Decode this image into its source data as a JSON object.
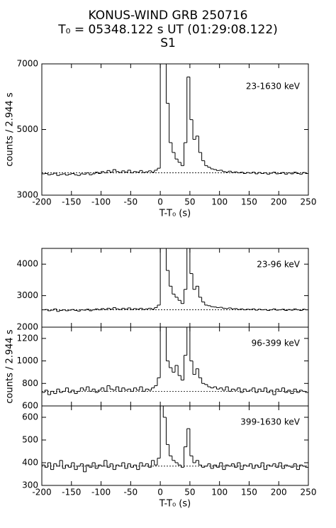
{
  "title": [
    "KONUS-WIND GRB 250716",
    "T₀ = 05348.122 s UT (01:29:08.122)",
    "S1"
  ],
  "chart_data": [
    {
      "type": "histogram",
      "label": "23-1630 keV",
      "ylabel": "counts / 2.944 s",
      "xlabel": "T-T₀ (s)",
      "xlim": [
        -200,
        250
      ],
      "xticks": [
        -200,
        -150,
        -100,
        -50,
        0,
        50,
        100,
        150,
        200,
        250
      ],
      "ylim": [
        3000,
        7000
      ],
      "yticks": [
        3000,
        5000,
        7000
      ],
      "background": 3680,
      "color": "#000000",
      "bins": [
        -200,
        -195,
        -190,
        -185,
        -180,
        -175,
        -170,
        -165,
        -160,
        -155,
        -150,
        -145,
        -140,
        -135,
        -130,
        -125,
        -120,
        -115,
        -110,
        -105,
        -100,
        -95,
        -90,
        -85,
        -80,
        -75,
        -70,
        -65,
        -60,
        -55,
        -50,
        -45,
        -40,
        -35,
        -30,
        -25,
        -20,
        -15,
        -10,
        -5,
        0,
        5,
        10,
        15,
        20,
        25,
        30,
        35,
        40,
        45,
        50,
        55,
        60,
        65,
        70,
        75,
        80,
        85,
        90,
        95,
        100,
        105,
        110,
        115,
        120,
        125,
        130,
        135,
        140,
        145,
        150,
        155,
        160,
        165,
        170,
        175,
        180,
        185,
        190,
        195,
        200,
        205,
        210,
        215,
        220,
        225,
        230,
        235,
        240,
        245,
        250
      ],
      "values": [
        3650,
        3660,
        3620,
        3640,
        3670,
        3600,
        3630,
        3650,
        3610,
        3640,
        3660,
        3620,
        3600,
        3650,
        3640,
        3680,
        3620,
        3650,
        3700,
        3660,
        3720,
        3680,
        3750,
        3700,
        3780,
        3720,
        3690,
        3740,
        3700,
        3760,
        3680,
        3720,
        3700,
        3750,
        3690,
        3710,
        3740,
        3700,
        3760,
        3820,
        7000,
        7000,
        5800,
        4600,
        4300,
        4100,
        4000,
        3900,
        4600,
        6600,
        5300,
        4700,
        4800,
        4300,
        4050,
        3900,
        3850,
        3800,
        3780,
        3750,
        3760,
        3720,
        3700,
        3730,
        3690,
        3710,
        3680,
        3700,
        3660,
        3690,
        3670,
        3700,
        3650,
        3690,
        3660,
        3680,
        3640,
        3670,
        3700,
        3650,
        3660,
        3690,
        3640,
        3680,
        3650,
        3700,
        3660,
        3640,
        3690,
        3660
      ]
    },
    {
      "type": "histogram",
      "label": "23-96 keV",
      "xlim": [
        -200,
        250
      ],
      "xticks": [
        -200,
        -150,
        -100,
        -50,
        0,
        50,
        100,
        150,
        200,
        250
      ],
      "ylim": [
        2000,
        4500
      ],
      "yticks": [
        2000,
        3000,
        4000
      ],
      "background": 2550,
      "color": "#000000",
      "bins": [
        -200,
        -195,
        -190,
        -185,
        -180,
        -175,
        -170,
        -165,
        -160,
        -155,
        -150,
        -145,
        -140,
        -135,
        -130,
        -125,
        -120,
        -115,
        -110,
        -105,
        -100,
        -95,
        -90,
        -85,
        -80,
        -75,
        -70,
        -65,
        -60,
        -55,
        -50,
        -45,
        -40,
        -35,
        -30,
        -25,
        -20,
        -15,
        -10,
        -5,
        0,
        5,
        10,
        15,
        20,
        25,
        30,
        35,
        40,
        45,
        50,
        55,
        60,
        65,
        70,
        75,
        80,
        85,
        90,
        95,
        100,
        105,
        110,
        115,
        120,
        125,
        130,
        135,
        140,
        145,
        150,
        155,
        160,
        165,
        170,
        175,
        180,
        185,
        190,
        195,
        200,
        205,
        210,
        215,
        220,
        225,
        230,
        235,
        240,
        245,
        250
      ],
      "values": [
        2550,
        2560,
        2520,
        2540,
        2580,
        2500,
        2530,
        2550,
        2520,
        2540,
        2560,
        2530,
        2510,
        2550,
        2540,
        2570,
        2520,
        2550,
        2580,
        2550,
        2590,
        2560,
        2600,
        2570,
        2620,
        2580,
        2560,
        2600,
        2570,
        2610,
        2560,
        2590,
        2570,
        2600,
        2560,
        2580,
        2600,
        2570,
        2620,
        2700,
        4500,
        4500,
        3800,
        3300,
        3050,
        2950,
        2850,
        2750,
        3200,
        4500,
        3700,
        3200,
        3300,
        2950,
        2800,
        2700,
        2680,
        2650,
        2640,
        2620,
        2630,
        2600,
        2590,
        2610,
        2580,
        2590,
        2560,
        2580,
        2550,
        2570,
        2560,
        2580,
        2540,
        2570,
        2550,
        2560,
        2530,
        2550,
        2580,
        2540,
        2550,
        2570,
        2530,
        2560,
        2540,
        2580,
        2550,
        2530,
        2570,
        2550
      ]
    },
    {
      "type": "histogram",
      "label": "96-399 keV",
      "ylabel": "counts / 2.944 s",
      "xlim": [
        -200,
        250
      ],
      "xticks": [
        -200,
        -150,
        -100,
        -50,
        0,
        50,
        100,
        150,
        200,
        250
      ],
      "ylim": [
        600,
        1300
      ],
      "yticks": [
        600,
        800,
        1000,
        1200
      ],
      "background": 730,
      "color": "#000000",
      "bins": [
        -200,
        -195,
        -190,
        -185,
        -180,
        -175,
        -170,
        -165,
        -160,
        -155,
        -150,
        -145,
        -140,
        -135,
        -130,
        -125,
        -120,
        -115,
        -110,
        -105,
        -100,
        -95,
        -90,
        -85,
        -80,
        -75,
        -70,
        -65,
        -60,
        -55,
        -50,
        -45,
        -40,
        -35,
        -30,
        -25,
        -20,
        -15,
        -10,
        -5,
        0,
        5,
        10,
        15,
        20,
        25,
        30,
        35,
        40,
        45,
        50,
        55,
        60,
        65,
        70,
        75,
        80,
        85,
        90,
        95,
        100,
        105,
        110,
        115,
        120,
        125,
        130,
        135,
        140,
        145,
        150,
        155,
        160,
        165,
        170,
        175,
        180,
        185,
        190,
        195,
        200,
        205,
        210,
        215,
        220,
        225,
        230,
        235,
        240,
        245,
        250
      ],
      "values": [
        720,
        740,
        700,
        730,
        710,
        750,
        720,
        730,
        760,
        720,
        740,
        710,
        730,
        760,
        740,
        770,
        730,
        750,
        720,
        740,
        760,
        730,
        780,
        750,
        740,
        770,
        730,
        760,
        740,
        750,
        730,
        760,
        740,
        770,
        730,
        750,
        740,
        760,
        780,
        850,
        1300,
        1300,
        1000,
        940,
        900,
        960,
        870,
        830,
        1050,
        1300,
        1000,
        880,
        930,
        850,
        800,
        790,
        770,
        760,
        770,
        750,
        760,
        740,
        770,
        730,
        750,
        740,
        760,
        720,
        750,
        730,
        740,
        760,
        720,
        750,
        730,
        760,
        720,
        740,
        700,
        750,
        730,
        760,
        720,
        740,
        710,
        750,
        720,
        740,
        730,
        720
      ]
    },
    {
      "type": "histogram",
      "label": "399-1630 keV",
      "xlabel": "T-T₀ (s)",
      "xlim": [
        -200,
        250
      ],
      "xticks": [
        -200,
        -150,
        -100,
        -50,
        0,
        50,
        100,
        150,
        200,
        250
      ],
      "ylim": [
        300,
        650
      ],
      "yticks": [
        300,
        400,
        500,
        600
      ],
      "background": 385,
      "color": "#000000",
      "bins": [
        -200,
        -195,
        -190,
        -185,
        -180,
        -175,
        -170,
        -165,
        -160,
        -155,
        -150,
        -145,
        -140,
        -135,
        -130,
        -125,
        -120,
        -115,
        -110,
        -105,
        -100,
        -95,
        -90,
        -85,
        -80,
        -75,
        -70,
        -65,
        -60,
        -55,
        -50,
        -45,
        -40,
        -35,
        -30,
        -25,
        -20,
        -15,
        -10,
        -5,
        0,
        5,
        10,
        15,
        20,
        25,
        30,
        35,
        40,
        45,
        50,
        55,
        60,
        65,
        70,
        75,
        80,
        85,
        90,
        95,
        100,
        105,
        110,
        115,
        120,
        125,
        130,
        135,
        140,
        145,
        150,
        155,
        160,
        165,
        170,
        175,
        180,
        185,
        190,
        195,
        200,
        205,
        210,
        215,
        220,
        225,
        230,
        235,
        240,
        245,
        250
      ],
      "values": [
        390,
        380,
        400,
        370,
        395,
        385,
        410,
        375,
        390,
        380,
        400,
        370,
        385,
        395,
        360,
        390,
        380,
        400,
        375,
        390,
        385,
        410,
        380,
        395,
        370,
        390,
        385,
        400,
        375,
        395,
        380,
        390,
        370,
        400,
        385,
        395,
        380,
        410,
        390,
        420,
        650,
        600,
        480,
        430,
        410,
        400,
        390,
        380,
        470,
        550,
        430,
        400,
        410,
        390,
        380,
        385,
        395,
        375,
        390,
        380,
        400,
        370,
        390,
        385,
        395,
        380,
        400,
        370,
        390,
        385,
        395,
        375,
        390,
        380,
        400,
        370,
        390,
        385,
        395,
        380,
        400,
        375,
        390,
        385,
        380,
        395,
        370,
        390,
        385,
        380
      ]
    }
  ]
}
